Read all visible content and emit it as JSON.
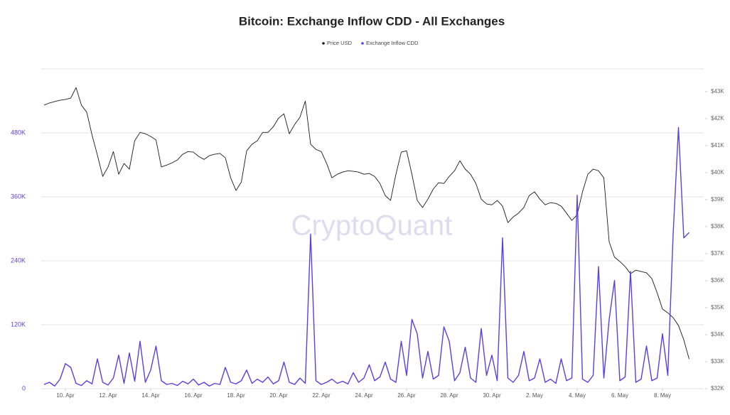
{
  "chart_data": {
    "type": "line",
    "title": "Bitcoin: Exchange Inflow CDD - All Exchanges",
    "watermark": "CryptoQuant",
    "categories": [
      null,
      null,
      null,
      null,
      "10. Apr",
      null,
      null,
      null,
      null,
      null,
      null,
      null,
      "12. Apr",
      null,
      null,
      null,
      null,
      null,
      null,
      null,
      "14. Apr",
      null,
      null,
      null,
      null,
      null,
      null,
      null,
      "16. Apr",
      null,
      null,
      null,
      null,
      null,
      null,
      null,
      "18. Apr",
      null,
      null,
      null,
      null,
      null,
      null,
      null,
      "20. Apr",
      null,
      null,
      null,
      null,
      null,
      null,
      null,
      "22. Apr",
      null,
      null,
      null,
      null,
      null,
      null,
      null,
      "24. Apr",
      null,
      null,
      null,
      null,
      null,
      null,
      null,
      "26. Apr",
      null,
      null,
      null,
      null,
      null,
      null,
      null,
      "28. Apr",
      null,
      null,
      null,
      null,
      null,
      null,
      null,
      "30. Apr",
      null,
      null,
      null,
      null,
      null,
      null,
      null,
      "2. May",
      null,
      null,
      null,
      null,
      null,
      null,
      null,
      "4. May",
      null,
      null,
      null,
      null,
      null,
      null,
      null,
      "6. May",
      null,
      null,
      null,
      null,
      null,
      null,
      null,
      "8. May",
      null,
      null,
      null,
      null,
      null
    ],
    "series": [
      {
        "name": "Price USD",
        "color": "#1a1a1a",
        "axis": "y2",
        "values": [
          42500,
          42580,
          42630,
          42680,
          42710,
          42760,
          43150,
          42500,
          42240,
          41390,
          40650,
          39860,
          40210,
          40780,
          39940,
          40340,
          40130,
          41180,
          41490,
          41440,
          41340,
          41210,
          40210,
          40280,
          40360,
          40470,
          40680,
          40780,
          40760,
          40600,
          40490,
          40630,
          40680,
          40710,
          40550,
          39810,
          39340,
          39650,
          40810,
          41050,
          41180,
          41490,
          41490,
          41700,
          42020,
          42180,
          41440,
          41780,
          42050,
          42650,
          41050,
          40860,
          40780,
          40340,
          39810,
          39940,
          40020,
          40070,
          40050,
          40020,
          39940,
          39970,
          39860,
          39600,
          39150,
          38970,
          39940,
          40760,
          40810,
          39940,
          38970,
          38710,
          39020,
          39390,
          39630,
          39600,
          39860,
          40070,
          40440,
          40130,
          39940,
          39600,
          39020,
          38840,
          38810,
          38970,
          38760,
          38150,
          38360,
          38500,
          38710,
          39150,
          39290,
          39020,
          38810,
          38890,
          38860,
          38760,
          38500,
          38230,
          38440,
          39290,
          39940,
          40130,
          40070,
          39810,
          37440,
          36870,
          36710,
          36520,
          36260,
          36390,
          36340,
          36290,
          36080,
          35550,
          34950,
          34810,
          34630,
          34340,
          33810,
          33100
        ]
      },
      {
        "name": "Exchange Inflow CDD",
        "color": "#5b3fe0",
        "values": [
          8000,
          12000,
          5000,
          18000,
          47000,
          40000,
          10000,
          6000,
          15000,
          9000,
          56000,
          12000,
          7000,
          20000,
          63000,
          10000,
          67000,
          14000,
          89000,
          12000,
          35000,
          80000,
          15000,
          8000,
          10000,
          6000,
          14000,
          9000,
          18000,
          7000,
          12000,
          5000,
          10000,
          8000,
          40000,
          12000,
          9000,
          15000,
          35000,
          10000,
          18000,
          12000,
          22000,
          9000,
          15000,
          50000,
          12000,
          8000,
          20000,
          10000,
          290000,
          15000,
          8000,
          12000,
          18000,
          10000,
          14000,
          9000,
          30000,
          12000,
          20000,
          45000,
          15000,
          22000,
          50000,
          18000,
          12000,
          89000,
          25000,
          130000,
          103000,
          20000,
          70000,
          18000,
          25000,
          116000,
          89000,
          15000,
          30000,
          78000,
          20000,
          12000,
          113000,
          25000,
          63000,
          15000,
          283000,
          20000,
          12000,
          25000,
          70000,
          15000,
          20000,
          56000,
          12000,
          18000,
          10000,
          56000,
          15000,
          20000,
          363000,
          18000,
          12000,
          25000,
          229000,
          20000,
          130000,
          203000,
          15000,
          22000,
          220000,
          12000,
          18000,
          80000,
          15000,
          20000,
          103000,
          25000,
          290000,
          490000,
          283000,
          293000
        ]
      }
    ],
    "ylim": [
      0,
      600000
    ],
    "yticks": [
      0,
      {
        "value": 120000,
        "label": "120K"
      },
      {
        "value": 240000,
        "label": "240K"
      },
      {
        "value": 360000,
        "label": "360K"
      },
      {
        "value": 480000,
        "label": "480K"
      }
    ],
    "y2lim": [
      32000,
      43840
    ],
    "y2ticks": [
      {
        "value": 32000,
        "label": "$32K"
      },
      {
        "value": 33000,
        "label": "$33K"
      },
      {
        "value": 34000,
        "label": "$34K"
      },
      {
        "value": 35000,
        "label": "$35K"
      },
      {
        "value": 36000,
        "label": "$36K"
      },
      {
        "value": 37000,
        "label": "$37K"
      },
      {
        "value": 38000,
        "label": "$38K"
      },
      {
        "value": 39000,
        "label": "$39K"
      },
      {
        "value": 40000,
        "label": "$40K"
      },
      {
        "value": 41000,
        "label": "$41K"
      },
      {
        "value": 42000,
        "label": "$42K"
      },
      {
        "value": 43000,
        "label": "$43K"
      }
    ],
    "grid": true
  }
}
